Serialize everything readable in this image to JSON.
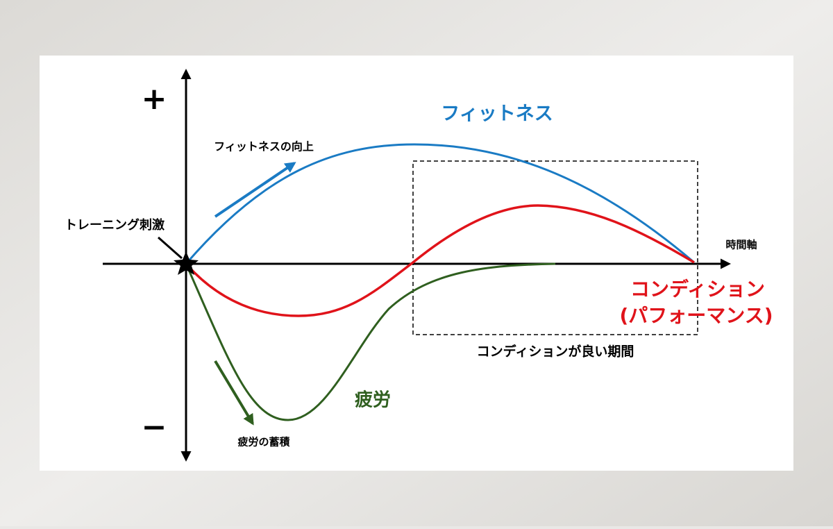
{
  "plus_sign": "+",
  "minus_sign": "−",
  "curves": {
    "fitness": "フィットネス",
    "condition_line1": "コンディション",
    "condition_line2": "(パフォーマンス)",
    "fatigue": "疲労"
  },
  "annotations": {
    "fitness_up": "フィットネスの向上",
    "stimulus": "トレーニング刺激",
    "time_axis": "時間軸",
    "good_period": "コンディションが良い期間",
    "fatigue_build": "疲労の蓄積"
  }
}
